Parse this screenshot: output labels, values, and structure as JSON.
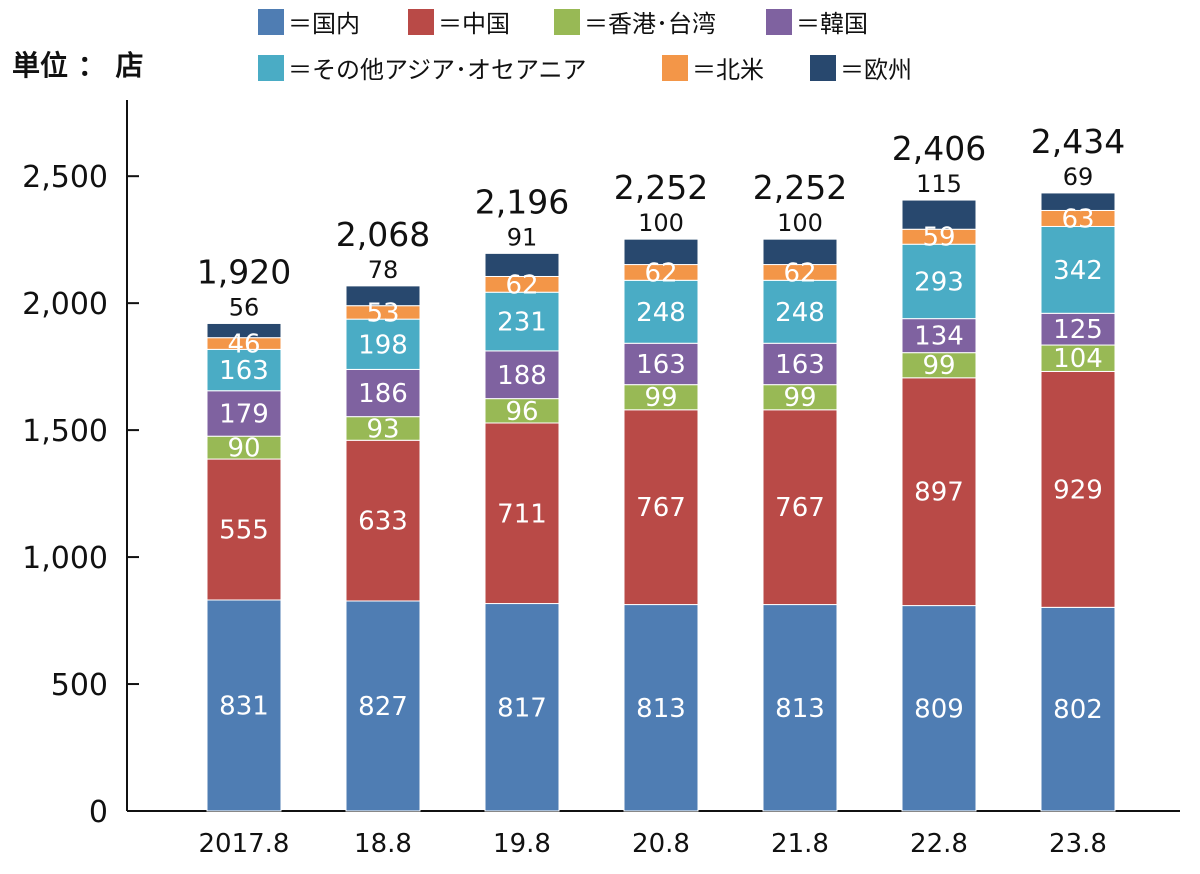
{
  "unit_label": "単位 ： 店",
  "legend": [
    {
      "label": "＝国内",
      "color": "#4f7db3"
    },
    {
      "label": "＝中国",
      "color": "#b94a47"
    },
    {
      "label": "＝香港･台湾",
      "color": "#98b955"
    },
    {
      "label": "＝韓国",
      "color": "#7f62a0"
    },
    {
      "label": "＝その他アジア･オセアニア",
      "color": "#4aacc5"
    },
    {
      "label": "＝北米",
      "color": "#f39648"
    },
    {
      "label": "＝欧州",
      "color": "#28486e"
    }
  ],
  "chart_data": {
    "type": "bar",
    "stacked": true,
    "categories": [
      "2017.8",
      "18.8",
      "19.8",
      "20.8",
      "21.8",
      "22.8",
      "23.8"
    ],
    "series": [
      {
        "name": "国内",
        "color": "#4f7db3",
        "values": [
          831,
          827,
          817,
          813,
          813,
          809,
          802
        ]
      },
      {
        "name": "中国",
        "color": "#b94a47",
        "values": [
          555,
          633,
          711,
          767,
          767,
          897,
          929
        ]
      },
      {
        "name": "香港･台湾",
        "color": "#98b955",
        "values": [
          90,
          93,
          96,
          99,
          99,
          99,
          104
        ]
      },
      {
        "name": "韓国",
        "color": "#7f62a0",
        "values": [
          179,
          186,
          188,
          163,
          163,
          134,
          125
        ]
      },
      {
        "name": "その他アジア･オセアニア",
        "color": "#4aacc5",
        "values": [
          163,
          198,
          231,
          248,
          248,
          293,
          342
        ]
      },
      {
        "name": "北米",
        "color": "#f39648",
        "values": [
          46,
          53,
          62,
          62,
          62,
          59,
          63
        ]
      },
      {
        "name": "欧州",
        "color": "#28486e",
        "values": [
          56,
          78,
          91,
          100,
          100,
          115,
          69
        ]
      }
    ],
    "totals": [
      "1,920",
      "2,068",
      "2,196",
      "2,252",
      "2,252",
      "2,406",
      "2,434"
    ],
    "ylim": [
      0,
      2800
    ],
    "yticks": [
      0,
      500,
      1000,
      1500,
      2000,
      2500
    ],
    "ytick_labels": [
      "0",
      "500",
      "1,000",
      "1,500",
      "2,000",
      "2,500"
    ],
    "grid": false
  }
}
